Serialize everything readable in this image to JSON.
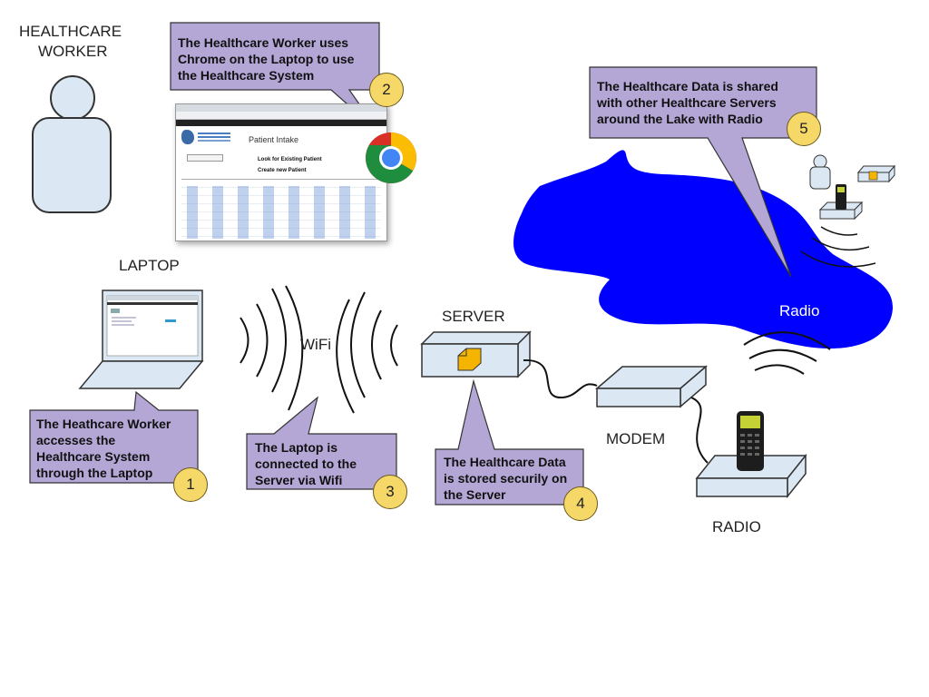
{
  "labels": {
    "healthcare_worker_line1": "HEALTHCARE",
    "healthcare_worker_line2": "WORKER",
    "laptop": "LAPTOP",
    "wifi": "WiFi",
    "server": "SERVER",
    "modem": "MODEM",
    "radio": "RADIO",
    "lake_radio": "Radio"
  },
  "callouts": [
    {
      "number": "1",
      "lines": [
        "The Heathcare Worker",
        "accesses the",
        "Healthcare System",
        "through the Laptop"
      ]
    },
    {
      "number": "2",
      "lines": [
        "The Healthcare Worker uses",
        "Chrome on the Laptop to use",
        "the Healthcare System"
      ]
    },
    {
      "number": "3",
      "lines": [
        "The Laptop is",
        "connected to the",
        "Server via Wifi"
      ]
    },
    {
      "number": "4",
      "lines": [
        "The Healthcare Data",
        "is stored securily on",
        "the Server"
      ]
    },
    {
      "number": "5",
      "lines": [
        "The Healthcare Data is shared",
        "with other Healthcare Servers",
        "around the Lake with Radio"
      ]
    }
  ],
  "screenshot": {
    "title": "Patient Intake",
    "links": [
      "Look for Existing Patient",
      "Create new Patient"
    ]
  },
  "colors": {
    "callout_fill": "#b4a7d6",
    "number_fill": "#f5d868",
    "lake": "#0000ff",
    "device_fill": "#dbe8f4",
    "folder": "#f5b400"
  },
  "icons": [
    "person-icon",
    "laptop-icon",
    "chrome-icon",
    "server-icon",
    "modem-icon",
    "radio-icon",
    "wifi-waves-icon"
  ]
}
